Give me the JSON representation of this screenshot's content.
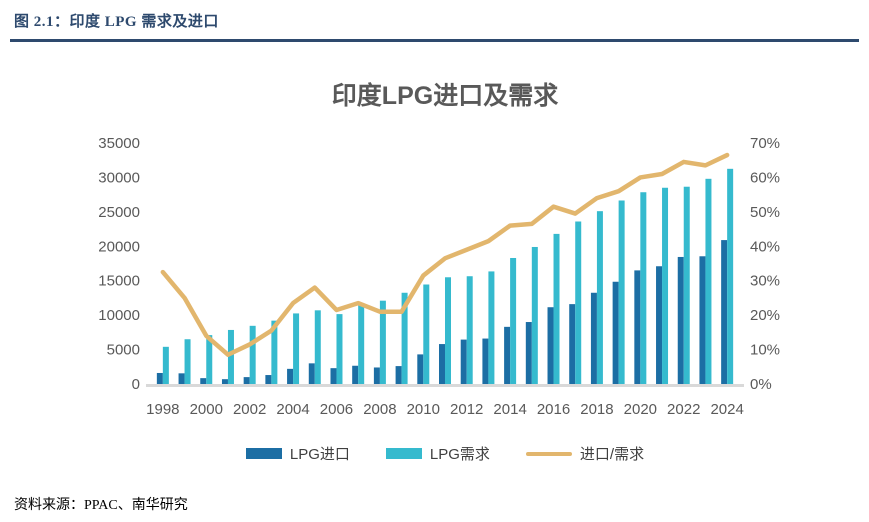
{
  "report": {
    "figure_label": "图 2.1：印度 LPG 需求及进口",
    "source_note": "资料来源：PPAC、南华研究"
  },
  "colors": {
    "header_accent": "#2e4a6e",
    "title_text": "#595959",
    "axis_text": "#595959",
    "baseline": "#d9d9d9",
    "import_bar": "#1c6ea4",
    "demand_bar": "#35bace",
    "ratio_line": "#e2b66d"
  },
  "chart_data": {
    "type": "bar",
    "subtype": "grouped bars with secondary-axis line",
    "title": "印度LPG进口及需求",
    "categories": [
      1998,
      1999,
      2000,
      2001,
      2002,
      2003,
      2004,
      2005,
      2006,
      2007,
      2008,
      2009,
      2010,
      2011,
      2012,
      2013,
      2014,
      2015,
      2016,
      2017,
      2018,
      2019,
      2020,
      2021,
      2022,
      2023,
      2024
    ],
    "x_tick_labels": [
      "1998",
      "2000",
      "2002",
      "2004",
      "2006",
      "2008",
      "2010",
      "2012",
      "2014",
      "2016",
      "2018",
      "2020",
      "2022",
      "2024"
    ],
    "series": [
      {
        "name": "LPG进口",
        "type": "bar",
        "axis": "left",
        "values": [
          1600,
          1550,
          850,
          700,
          1000,
          1300,
          2200,
          3000,
          2300,
          2650,
          2400,
          2600,
          4300,
          5800,
          6450,
          6600,
          8300,
          9000,
          11150,
          11600,
          13250,
          14850,
          16500,
          17100,
          18450,
          18550,
          20900
        ]
      },
      {
        "name": "LPG需求",
        "type": "bar",
        "axis": "left",
        "values": [
          5400,
          6500,
          7100,
          7850,
          8450,
          9200,
          10250,
          10700,
          10150,
          11500,
          12100,
          13250,
          14450,
          15500,
          15650,
          16350,
          18300,
          19900,
          21800,
          23600,
          25100,
          26650,
          27850,
          28500,
          28650,
          29800,
          31250
        ]
      },
      {
        "name": "进口/需求",
        "type": "line",
        "axis": "right",
        "unit": "%",
        "values": [
          32.5,
          25,
          14,
          8.5,
          11.5,
          15.5,
          23.5,
          28,
          21.5,
          23.5,
          21,
          21,
          31.5,
          36.5,
          39,
          41.5,
          46,
          46.5,
          51.5,
          49.5,
          54,
          56,
          60,
          61,
          64.5,
          63.5,
          66.5
        ]
      }
    ],
    "left_axis": {
      "min": 0,
      "max": 35000,
      "step": 5000,
      "tick_labels": [
        "0",
        "5000",
        "10000",
        "15000",
        "20000",
        "25000",
        "30000",
        "35000"
      ]
    },
    "right_axis": {
      "min": 0,
      "max": 70,
      "step": 10,
      "unit": "%",
      "tick_labels": [
        "0%",
        "10%",
        "20%",
        "30%",
        "40%",
        "50%",
        "60%",
        "70%"
      ]
    },
    "legend": {
      "position": "bottom",
      "items": [
        "LPG进口",
        "LPG需求",
        "进口/需求"
      ]
    },
    "grid": false
  }
}
